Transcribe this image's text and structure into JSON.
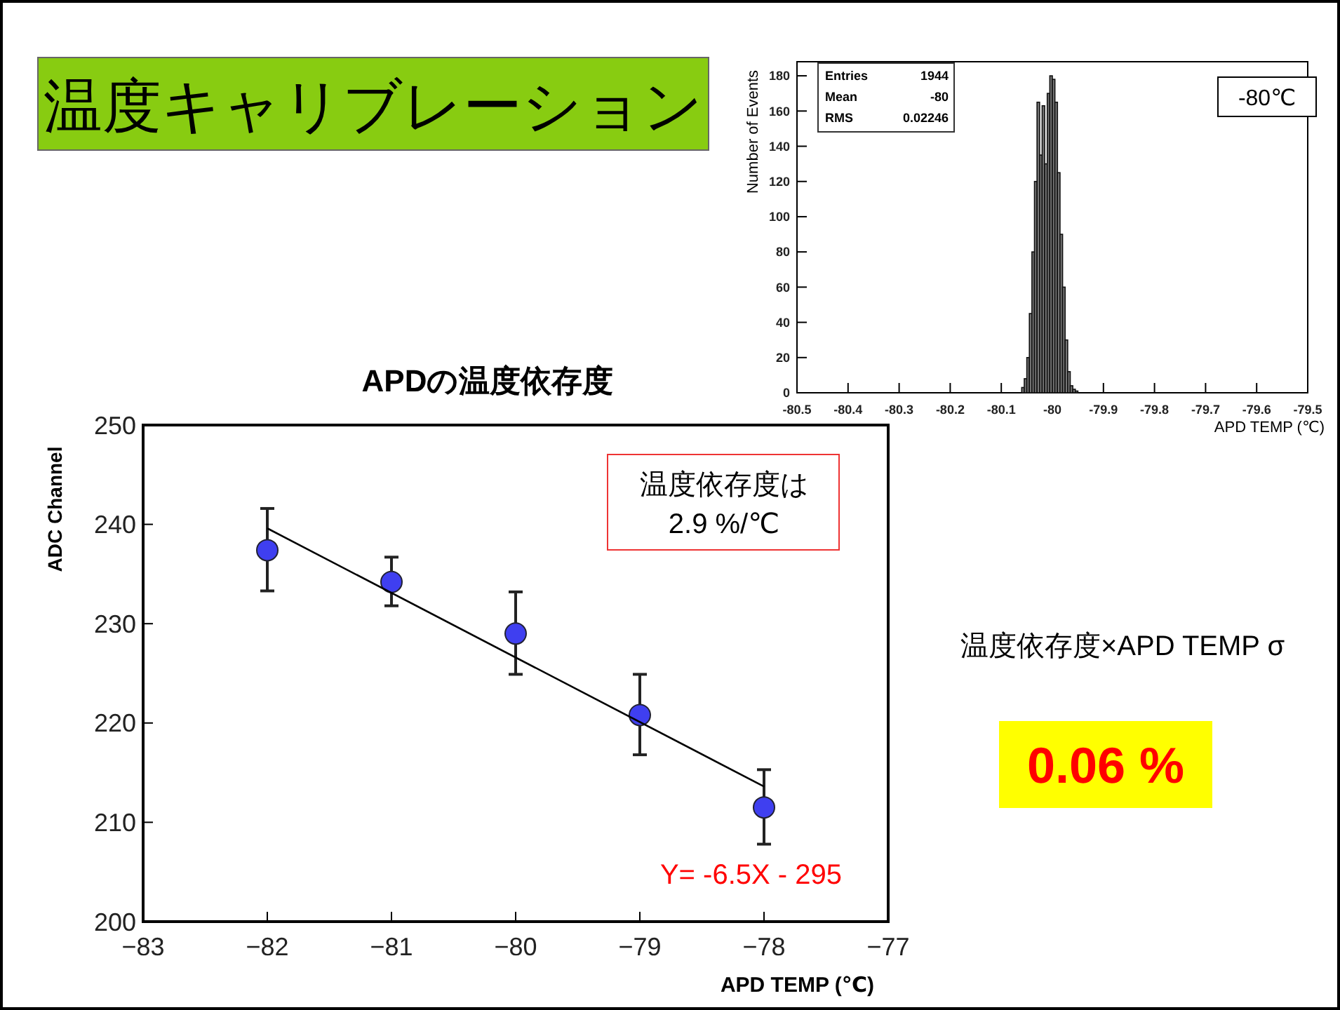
{
  "chart_data": [
    {
      "type": "scatter",
      "title": "APDの温度依存度",
      "xlabel": "APD TEMP (℃)",
      "ylabel": "ADC Channel",
      "xlim": [
        -83,
        -77
      ],
      "xticks": [
        {
          "value": -83,
          "label": "−83"
        },
        {
          "value": -82,
          "label": "−82"
        },
        {
          "value": -81,
          "label": "−81"
        },
        {
          "value": -80,
          "label": "−80"
        },
        {
          "value": -79,
          "label": "−79"
        },
        {
          "value": -78,
          "label": "−78"
        },
        {
          "value": -77,
          "label": "−77"
        }
      ],
      "ylim": [
        200,
        250
      ],
      "yticks": [
        200,
        210,
        220,
        230,
        240,
        250
      ],
      "series": [
        {
          "type": "scatter",
          "marker": "circle",
          "color": "#3f3ff0",
          "x": [
            -82,
            -81,
            -80,
            -79,
            -78
          ],
          "values": [
            237.4,
            234.2,
            229,
            220.8,
            211.5
          ],
          "errors": [
            [
              233.3,
              241.6
            ],
            [
              231.8,
              236.7
            ],
            [
              224.9,
              233.2
            ],
            [
              216.8,
              224.9
            ],
            [
              207.8,
              215.3
            ]
          ]
        },
        {
          "type": "line",
          "color": "#000000",
          "x": [
            -82,
            -78
          ],
          "values": [
            239.6,
            213.6
          ]
        }
      ],
      "annotations": [
        "温度依存度は\n2.9 %/℃",
        "Y= -6.5X - 295"
      ]
    },
    {
      "type": "histogram",
      "xlabel": "APD TEMP (℃)",
      "ylabel": "Number of Events",
      "color": "#777777",
      "xlim": [
        -80.5,
        -79.5
      ],
      "xticks": [
        -80.5,
        -80.4,
        -80.3,
        -80.2,
        -80.1,
        -80,
        -79.9,
        -79.8,
        -79.7,
        -79.6,
        -79.5
      ],
      "ylim": [
        0,
        188
      ],
      "yticks": [
        0,
        20,
        40,
        60,
        80,
        100,
        120,
        140,
        160,
        180
      ],
      "bins": [
        -80.06,
        -80.055,
        -80.05,
        -80.045,
        -80.04,
        -80.035,
        -80.03,
        -80.025,
        -80.02,
        -80.015,
        -80.01,
        -80.005,
        -80,
        -79.995,
        -79.99,
        -79.985,
        -79.98,
        -79.975,
        -79.97,
        -79.965,
        -79.96,
        -79.955,
        -79.95
      ],
      "values": [
        3,
        8,
        20,
        45,
        80,
        120,
        165,
        135,
        163,
        130,
        170,
        180,
        178,
        165,
        125,
        90,
        60,
        30,
        12,
        4,
        2,
        1
      ],
      "annotations": [
        "Entries 1944",
        "Mean -80",
        "RMS 0.02246",
        "-80℃"
      ]
    },
    {
      "type": "other",
      "title": "温度キャリブレーション",
      "annotations": [
        "温度依存度×APD TEMP σ",
        "0.06 %"
      ]
    }
  ]
}
